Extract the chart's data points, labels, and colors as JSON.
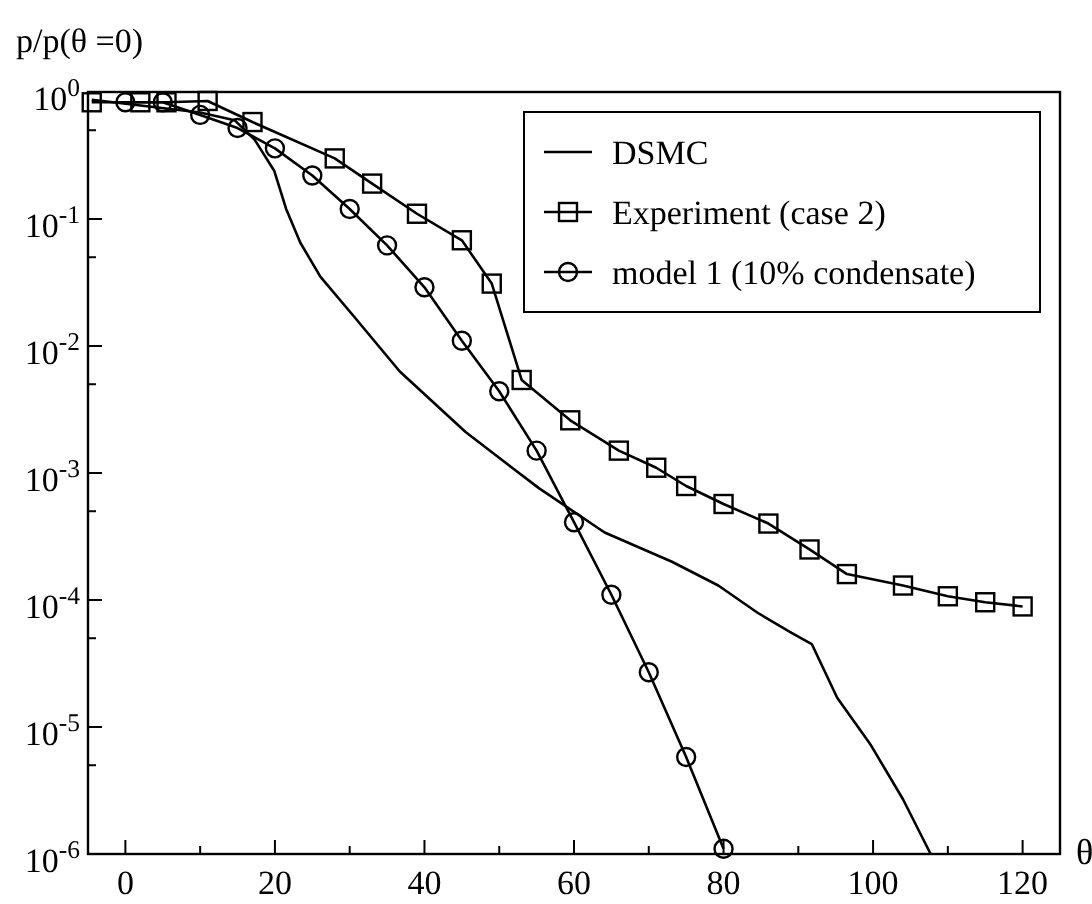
{
  "chart_data": {
    "type": "line",
    "ylabel": "p/p(θ =0)",
    "xlabel": "θ",
    "log": "y",
    "xlim": [
      -5,
      125
    ],
    "ylim": [
      1e-06,
      1
    ],
    "xticks": [
      0,
      {
        "value": 10,
        "label": null
      },
      20,
      {
        "value": 30,
        "label": null
      },
      40,
      {
        "value": 50,
        "label": null
      },
      60,
      {
        "value": 70,
        "label": null
      },
      80,
      {
        "value": 90,
        "label": null
      },
      100,
      {
        "value": 110,
        "label": null
      },
      120
    ],
    "yticks": [
      {
        "value": 1e-06,
        "label": "10$^{-6}$"
      },
      {
        "value": 5e-06,
        "label": null
      },
      {
        "value": 1e-05,
        "label": "10$^{-5}$"
      },
      {
        "value": 5e-05,
        "label": null
      },
      {
        "value": 0.0001,
        "label": "10$^{-4}$"
      },
      {
        "value": 0.0005,
        "label": null
      },
      {
        "value": 0.001,
        "label": "10$^{-3}$"
      },
      {
        "value": 0.005,
        "label": null
      },
      {
        "value": 0.01,
        "label": "10$^{-2}$"
      },
      {
        "value": 0.05,
        "label": null
      },
      {
        "value": 0.1,
        "label": "10$^{-1}$"
      },
      {
        "value": 0.5,
        "label": null
      },
      {
        "value": 1,
        "label": "10$^{0}$"
      }
    ],
    "grid": false,
    "legend": "top right",
    "line_style": "solid",
    "series": [
      {
        "name": "DSMC",
        "color": "#000000",
        "marker": "none",
        "x": [
          -4.5,
          10,
          14.6,
          17.3,
          19.9,
          21.5,
          23.4,
          26.1,
          30.6,
          36.7,
          45.5,
          55.3,
          64.1,
          73.1,
          79.3,
          84.6,
          89.1,
          91.8,
          95.2,
          99.7,
          104,
          107.7
        ],
        "values": [
          0.87,
          0.69,
          0.6,
          0.42,
          0.24,
          0.12,
          0.065,
          0.035,
          0.017,
          0.0063,
          0.0021,
          0.00076,
          0.00034,
          0.0002,
          0.00013,
          7.9e-05,
          5.5e-05,
          4.5e-05,
          1.7e-05,
          7.2e-06,
          2.7e-06,
          1e-06
        ]
      },
      {
        "name": "Experiment (case 2)",
        "color": "#000000",
        "marker": "square",
        "x": [
          -4.5,
          2,
          5.5,
          11,
          17,
          28,
          33,
          39,
          45,
          49,
          53,
          59.5,
          66,
          71,
          75,
          80,
          86,
          91.5,
          96.5,
          104,
          110,
          115,
          120
        ],
        "values": [
          0.83,
          0.83,
          0.83,
          0.85,
          0.58,
          0.3,
          0.19,
          0.11,
          0.068,
          0.031,
          0.0054,
          0.0026,
          0.0015,
          0.0011,
          0.00079,
          0.00057,
          0.0004,
          0.00025,
          0.00016,
          0.00013,
          0.000107,
          9.6e-05,
          8.9e-05
        ]
      },
      {
        "name": "model 1 (10% condensate)",
        "color": "#000000",
        "marker": "circle",
        "x": [
          0,
          5,
          10,
          15,
          20,
          25,
          30,
          35,
          40,
          45,
          50,
          55,
          60,
          65,
          70,
          75,
          80
        ],
        "values": [
          0.83,
          0.83,
          0.66,
          0.52,
          0.36,
          0.22,
          0.12,
          0.062,
          0.029,
          0.011,
          0.0044,
          0.0015,
          0.00041,
          0.00011,
          2.7e-05,
          5.8e-06,
          1.1e-06
        ]
      }
    ]
  }
}
